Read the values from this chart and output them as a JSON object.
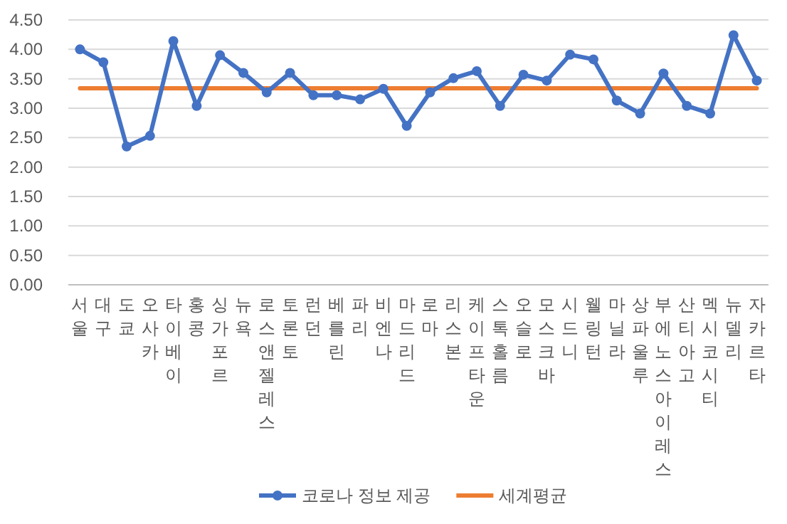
{
  "chart_data": {
    "type": "line",
    "categories": [
      "서울",
      "대구",
      "도쿄",
      "오사카",
      "타이베이",
      "홍콩",
      "싱가포르",
      "뉴욕",
      "로스앤젤레스",
      "토론토",
      "런던",
      "베를린",
      "파리",
      "비엔나",
      "마드리드",
      "로마",
      "리스본",
      "케이프타운",
      "스톡홀름",
      "오슬로",
      "모스크바",
      "시드니",
      "웰링턴",
      "마닐라",
      "상파울루",
      "부에노스아이레스",
      "산티아고",
      "멕시코시티",
      "뉴델리",
      "자카르타"
    ],
    "series": [
      {
        "name": "코로나 정보 제공",
        "color": "#4472c4",
        "marker": "circle",
        "values": [
          4.0,
          3.78,
          2.35,
          2.53,
          4.14,
          3.04,
          3.9,
          3.6,
          3.27,
          3.6,
          3.22,
          3.22,
          3.15,
          3.33,
          2.7,
          3.27,
          3.51,
          3.63,
          3.04,
          3.57,
          3.47,
          3.91,
          3.83,
          3.13,
          2.91,
          3.59,
          3.04,
          2.91,
          4.24,
          3.47
        ]
      },
      {
        "name": "세계평균",
        "color": "#ed7d31",
        "marker": "none",
        "values": [
          3.34,
          3.34,
          3.34,
          3.34,
          3.34,
          3.34,
          3.34,
          3.34,
          3.34,
          3.34,
          3.34,
          3.34,
          3.34,
          3.34,
          3.34,
          3.34,
          3.34,
          3.34,
          3.34,
          3.34,
          3.34,
          3.34,
          3.34,
          3.34,
          3.34,
          3.34,
          3.34,
          3.34,
          3.34,
          3.34
        ]
      }
    ],
    "ylim": [
      0,
      4.5
    ],
    "yticks": [
      {
        "value": 0,
        "label": "0.00"
      },
      {
        "value": 0.5,
        "label": "0.50"
      },
      {
        "value": 1,
        "label": "1.00"
      },
      {
        "value": 1.5,
        "label": "1.50"
      },
      {
        "value": 2,
        "label": "2.00"
      },
      {
        "value": 2.5,
        "label": "2.50"
      },
      {
        "value": 3,
        "label": "3.00"
      },
      {
        "value": 3.5,
        "label": "3.50"
      },
      {
        "value": 4,
        "label": "4.00"
      },
      {
        "value": 4.5,
        "label": "4.50"
      }
    ],
    "grid": "y",
    "legend": "bottom"
  }
}
